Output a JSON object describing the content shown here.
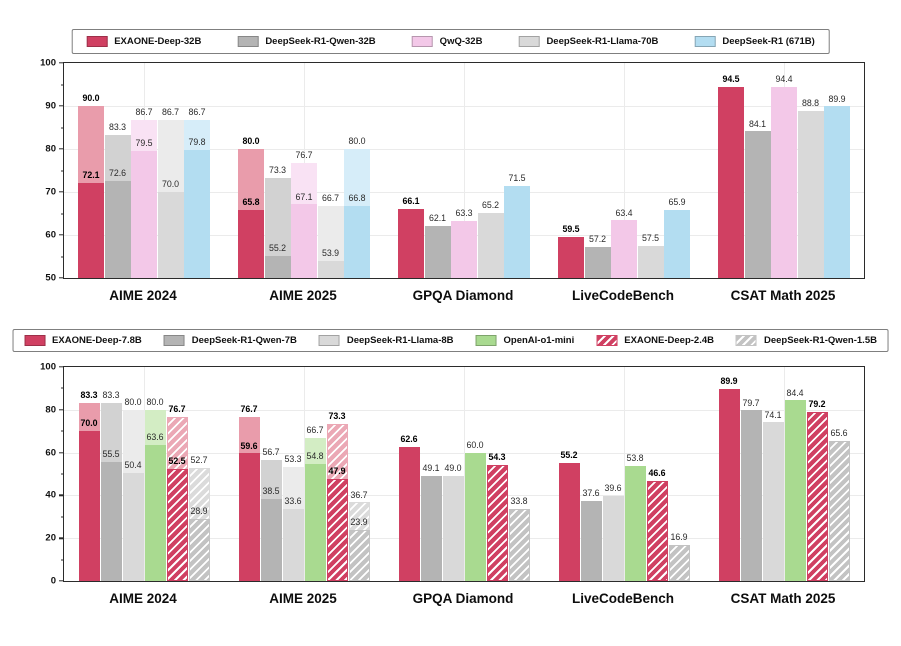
{
  "figure": {
    "categories": [
      "AIME 2024",
      "AIME 2025",
      "GPQA Diamond",
      "LiveCodeBench",
      "CSAT Math 2025"
    ]
  },
  "chart_data": [
    {
      "type": "bar",
      "panel": "top",
      "ylim": [
        50,
        100
      ],
      "yticks": [
        50,
        60,
        70,
        80,
        90,
        100
      ],
      "grid": true,
      "legend_position": "top-center",
      "categories": [
        "AIME 2024",
        "AIME 2025",
        "GPQA Diamond",
        "LiveCodeBench",
        "CSAT Math 2025"
      ],
      "series": [
        {
          "name": "EXAONE-Deep-32B",
          "color": "#d04062",
          "color_light": "#e99cab",
          "hatch": false,
          "bold_labels": true,
          "solid": [
            72.1,
            65.8,
            66.1,
            59.5,
            94.5
          ],
          "light": [
            90.0,
            80.0,
            null,
            null,
            null
          ]
        },
        {
          "name": "DeepSeek-R1-Qwen-32B",
          "color": "#b4b4b4",
          "color_light": "#d2d2d2",
          "hatch": false,
          "bold_labels": false,
          "solid": [
            72.6,
            55.2,
            62.1,
            57.2,
            84.1
          ],
          "light": [
            83.3,
            73.3,
            null,
            null,
            null
          ]
        },
        {
          "name": "QwQ-32B",
          "color": "#f3c8e8",
          "color_light": "#f9e2f4",
          "hatch": false,
          "bold_labels": false,
          "solid": [
            79.5,
            67.1,
            63.3,
            63.4,
            94.4
          ],
          "light": [
            86.7,
            76.7,
            null,
            null,
            null
          ]
        },
        {
          "name": "DeepSeek-R1-Llama-70B",
          "color": "#d9d9d9",
          "color_light": "#ebebeb",
          "hatch": false,
          "bold_labels": false,
          "solid": [
            70.0,
            53.9,
            65.2,
            57.5,
            88.8
          ],
          "light": [
            86.7,
            66.7,
            null,
            null,
            null
          ]
        },
        {
          "name": "DeepSeek-R1 (671B)",
          "color": "#b3ddf1",
          "color_light": "#d6edf9",
          "hatch": false,
          "bold_labels": false,
          "solid": [
            79.8,
            66.8,
            71.5,
            65.9,
            89.9
          ],
          "light": [
            86.7,
            80.0,
            null,
            null,
            null
          ]
        }
      ]
    },
    {
      "type": "bar",
      "panel": "bottom",
      "ylim": [
        0,
        100
      ],
      "yticks": [
        0,
        20,
        40,
        60,
        80,
        100
      ],
      "grid": true,
      "legend_position": "top-center",
      "categories": [
        "AIME 2024",
        "AIME 2025",
        "GPQA Diamond",
        "LiveCodeBench",
        "CSAT Math 2025"
      ],
      "series": [
        {
          "name": "EXAONE-Deep-7.8B",
          "color": "#d04062",
          "color_light": "#e99cab",
          "hatch": false,
          "bold_labels": true,
          "solid": [
            70.0,
            59.6,
            62.6,
            55.2,
            89.9
          ],
          "light": [
            83.3,
            76.7,
            null,
            null,
            null
          ]
        },
        {
          "name": "DeepSeek-R1-Qwen-7B",
          "color": "#b4b4b4",
          "color_light": "#d2d2d2",
          "hatch": false,
          "bold_labels": false,
          "solid": [
            55.5,
            38.5,
            49.1,
            37.6,
            79.7
          ],
          "light": [
            83.3,
            56.7,
            null,
            null,
            null
          ]
        },
        {
          "name": "DeepSeek-R1-Llama-8B",
          "color": "#d9d9d9",
          "color_light": "#ebebeb",
          "hatch": false,
          "bold_labels": false,
          "solid": [
            50.4,
            33.6,
            49.0,
            39.6,
            74.1
          ],
          "light": [
            80.0,
            53.3,
            null,
            null,
            null
          ]
        },
        {
          "name": "OpenAI-o1-mini",
          "color": "#a9da90",
          "color_light": "#d3edc4",
          "hatch": false,
          "bold_labels": false,
          "solid": [
            63.6,
            54.8,
            60.0,
            53.8,
            84.4
          ],
          "light": [
            80.0,
            66.7,
            null,
            null,
            null
          ]
        },
        {
          "name": "EXAONE-Deep-2.4B",
          "color": "#d04062",
          "color_light": "#eba8b5",
          "hatch": true,
          "bold_labels": true,
          "solid": [
            52.5,
            47.9,
            54.3,
            46.6,
            79.2
          ],
          "light": [
            76.7,
            73.3,
            null,
            null,
            null
          ]
        },
        {
          "name": "DeepSeek-R1-Qwen-1.5B",
          "color": "#c3c3c3",
          "color_light": "#dbdbdb",
          "hatch": true,
          "bold_labels": false,
          "solid": [
            28.9,
            23.9,
            33.8,
            16.9,
            65.6
          ],
          "light": [
            52.7,
            36.7,
            null,
            null,
            null
          ]
        }
      ]
    }
  ]
}
